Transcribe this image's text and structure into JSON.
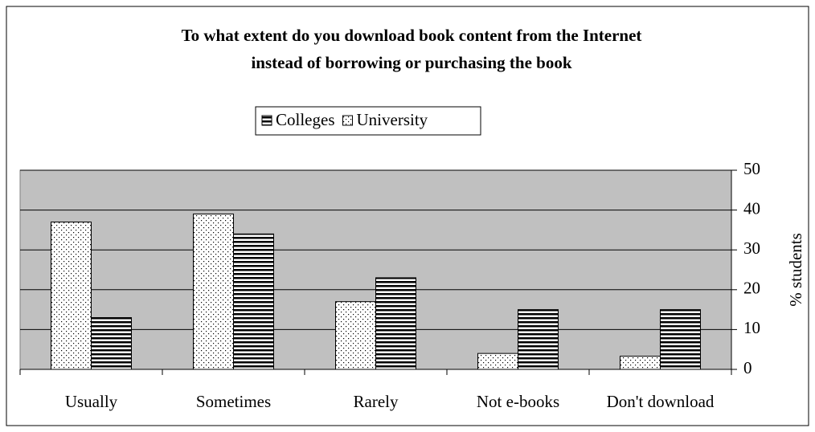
{
  "chart_data": {
    "type": "bar",
    "title": [
      "To what extent do you download book content from the Internet",
      "instead of borrowing or purchasing the book"
    ],
    "categories": [
      "Usually",
      "Sometimes",
      "Rarely",
      "Not e-books",
      "Don't download"
    ],
    "series": [
      {
        "name": "Colleges",
        "color": "#000000",
        "pattern": "hstripes",
        "values": [
          13,
          34,
          23,
          15,
          15
        ]
      },
      {
        "name": "University",
        "color": "#000000",
        "pattern": "dots",
        "values": [
          37,
          39,
          17,
          4,
          3.3
        ]
      }
    ],
    "y_label": "% students",
    "ylim": [
      0,
      50
    ],
    "yticks": [
      0,
      10,
      20,
      30,
      40,
      50
    ],
    "grid": true,
    "y_axis_side": "right",
    "plot_background": "#c0c0c0",
    "legend": "top"
  }
}
